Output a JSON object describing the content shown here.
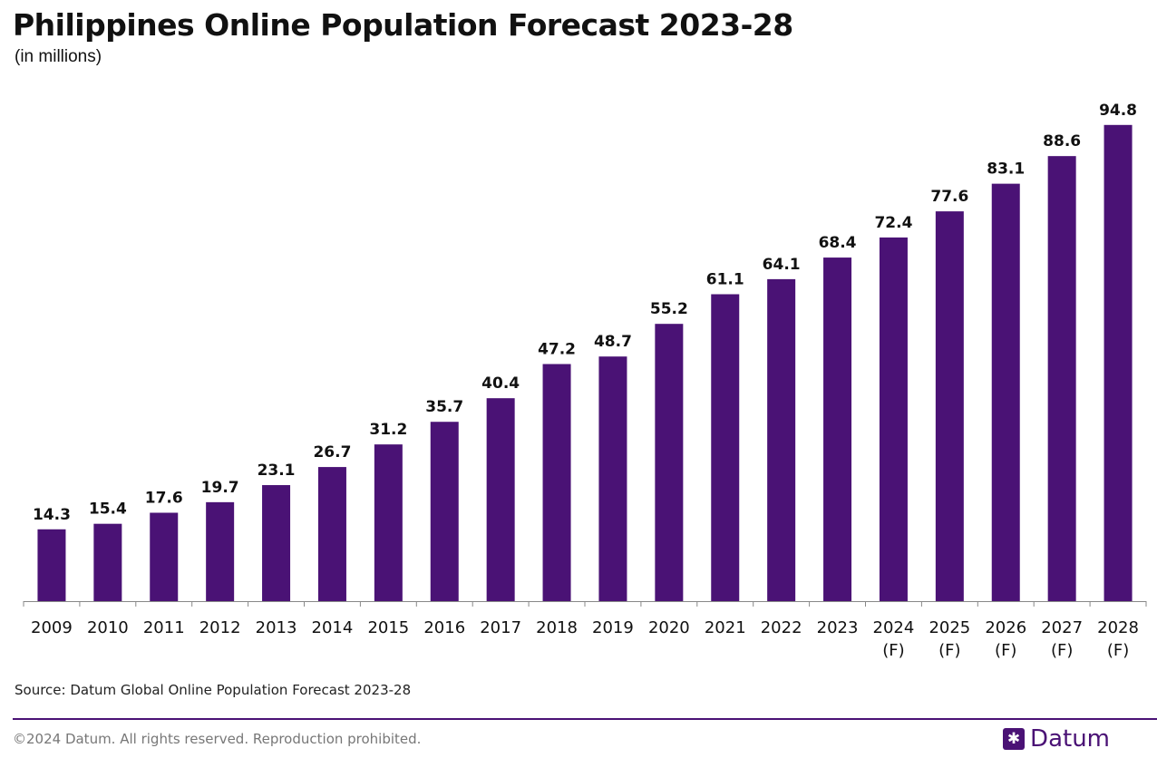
{
  "header": {
    "title": "Philippines Online Population Forecast 2023-28",
    "subtitle": "(in millions)"
  },
  "chart_data": {
    "type": "bar",
    "title": "Philippines Online Population Forecast 2023-28",
    "subtitle": "(in millions)",
    "categories": [
      "2009",
      "2010",
      "2011",
      "2012",
      "2013",
      "2014",
      "2015",
      "2016",
      "2017",
      "2018",
      "2019",
      "2020",
      "2021",
      "2022",
      "2023",
      "2024 (F)",
      "2025 (F)",
      "2026 (F)",
      "2027 (F)",
      "2028 (F)"
    ],
    "values": [
      14.3,
      15.4,
      17.6,
      19.7,
      23.1,
      26.7,
      31.2,
      35.7,
      40.4,
      47.2,
      48.7,
      55.2,
      61.1,
      64.1,
      68.4,
      72.4,
      77.6,
      83.1,
      88.6,
      94.8
    ],
    "ylim": [
      0,
      100
    ],
    "grid": false,
    "bar_color": "#4a1275",
    "data_labels": true
  },
  "footer": {
    "source": "Source: Datum Global Online Population Forecast 2023-28",
    "copyright": "©2024 Datum. All rights reserved. Reproduction prohibited.",
    "brand": "Datum",
    "brand_icon": "datum-logo-icon",
    "brand_color": "#4a1275"
  }
}
